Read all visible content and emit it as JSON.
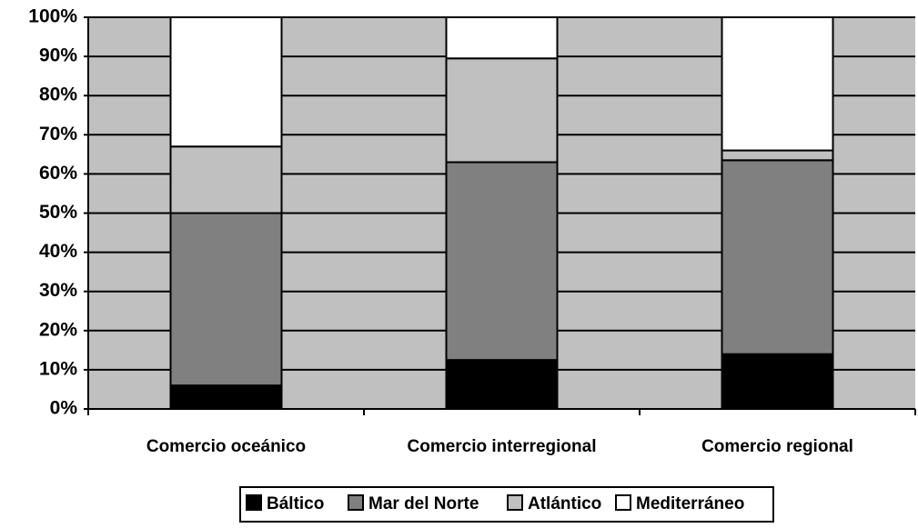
{
  "chart_data": {
    "type": "bar",
    "stacked": "percent",
    "title": "",
    "xlabel": "",
    "ylabel": "",
    "ylim": [
      0,
      100
    ],
    "ytick_labels": [
      "0%",
      "10%",
      "20%",
      "30%",
      "40%",
      "50%",
      "60%",
      "70%",
      "80%",
      "90%",
      "100%"
    ],
    "categories": [
      "Comercio oceánico",
      "Comercio interregional",
      "Comercio regional"
    ],
    "series": [
      {
        "name": "Báltico",
        "values": [
          6,
          12.5,
          14
        ],
        "color": "#000000"
      },
      {
        "name": "Mar del Norte",
        "values": [
          44,
          50.5,
          49.5
        ],
        "color": "#808080"
      },
      {
        "name": "Atlántico",
        "values": [
          17,
          26.5,
          2.5
        ],
        "color": "#c0c0c0"
      },
      {
        "name": "Mediterráneo",
        "values": [
          33,
          10.5,
          34
        ],
        "color": "#ffffff"
      }
    ],
    "plot_background": "#c0c0c0",
    "grid": true,
    "legend_position": "bottom"
  }
}
